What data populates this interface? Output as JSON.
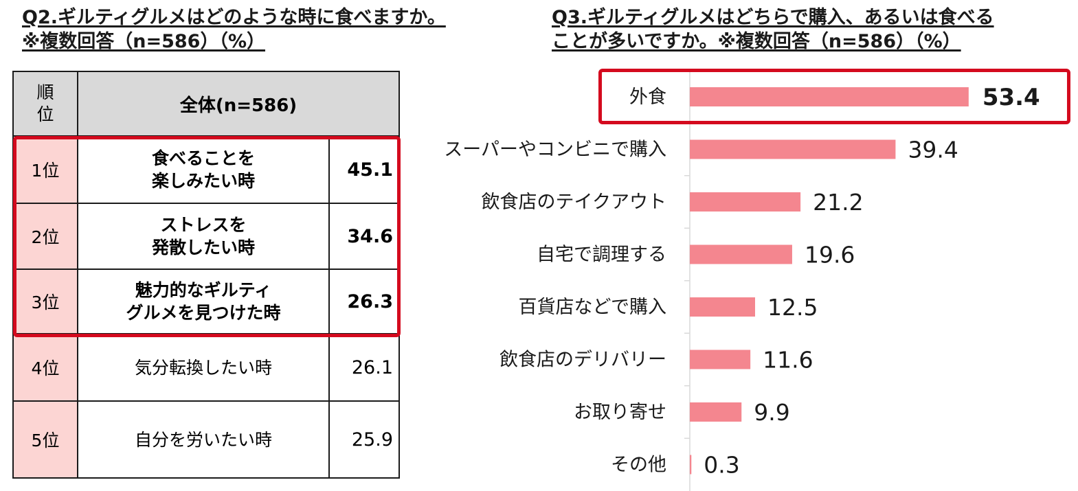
{
  "q2": {
    "title_line1": "Q2.ギルティグルメはどのような時に食べますか。",
    "title_line2": "※複数回答（n=586）（%）",
    "header_rank": [
      "順",
      "位"
    ],
    "header_all": "全体(n=586)",
    "rows": [
      {
        "rank": "1位",
        "label": [
          "食べることを",
          "楽しみたい時"
        ],
        "value": "45.1"
      },
      {
        "rank": "2位",
        "label": [
          "ストレスを",
          "発散したい時"
        ],
        "value": "34.6"
      },
      {
        "rank": "3位",
        "label": [
          "魅力的なギルティ",
          "グルメを見つけた時"
        ],
        "value": "26.3"
      },
      {
        "rank": "4位",
        "label": [
          "気分転換したい時"
        ],
        "value": "26.1"
      },
      {
        "rank": "5位",
        "label": [
          "自分を労いたい時"
        ],
        "value": "25.9"
      }
    ],
    "highlight_color": "#d40a1e",
    "rank_bg": "#fcd5d3",
    "header_bg": "#d9d9d9"
  },
  "q3": {
    "title_line1": "Q3.ギルティグルメはどちらで購入、あるいは食べる",
    "title_line2": "ことが多いですか。※複数回答（n=586）（%）"
  },
  "chart_data": {
    "type": "bar",
    "orientation": "horizontal",
    "title": "Q3.ギルティグルメはどちらで購入、あるいは食べることが多いですか。※複数回答（n=586）（%）",
    "categories": [
      "外食",
      "スーパーやコンビニで購入",
      "飲食店のテイクアウト",
      "自宅で調理する",
      "百貨店などで購入",
      "飲食店のデリバリー",
      "お取り寄せ",
      "その他"
    ],
    "values": [
      53.4,
      39.4,
      21.2,
      19.6,
      12.5,
      11.6,
      9.9,
      0.3
    ],
    "value_labels": [
      "53.4",
      "39.4",
      "21.2",
      "19.6",
      "12.5",
      "11.6",
      "9.9",
      "0.3"
    ],
    "highlighted_category": "外食",
    "bar_color": "#f4868f",
    "xlim": [
      0,
      55
    ],
    "xlabel": "",
    "ylabel": ""
  }
}
